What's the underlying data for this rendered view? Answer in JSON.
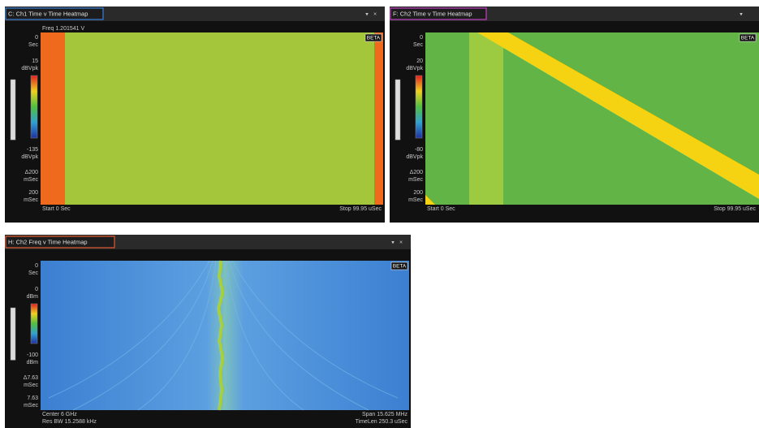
{
  "panels": [
    {
      "title": "C: Ch1 Time v Time Heatmap",
      "controls": [
        "▾",
        "×"
      ],
      "marker": "Freq 1.201541 V",
      "badge": "BETA",
      "y_top": [
        "0",
        "Sec"
      ],
      "scale_max": [
        "15",
        "dBVpk"
      ],
      "scale_min": [
        "-135",
        "dBVpk"
      ],
      "delta": [
        "Δ200",
        "mSec"
      ],
      "y_bottom": [
        "200",
        "mSec"
      ],
      "footer_left": [
        "Start 0 Sec"
      ],
      "footer_right": [
        "Stop 99.95 uSec"
      ]
    },
    {
      "title": "F: Ch2 Time v Time Heatmap",
      "controls": [
        "▾"
      ],
      "badge": "BETA",
      "y_top": [
        "0",
        "Sec"
      ],
      "scale_max": [
        "20",
        "dBVpk"
      ],
      "scale_min": [
        "-80",
        "dBVpk"
      ],
      "delta": [
        "Δ200",
        "mSec"
      ],
      "y_bottom": [
        "200",
        "mSec"
      ],
      "footer_left": [
        "Start 0 Sec"
      ],
      "footer_right": [
        "Stop 99.95 uSec"
      ]
    },
    {
      "title": "H: Ch2 Freq v Time Heatmap",
      "controls": [
        "▾",
        "×"
      ],
      "badge": "BETA",
      "y_top": [
        "0",
        "Sec"
      ],
      "scale_max": [
        "0",
        "dBm"
      ],
      "scale_min": [
        "-100",
        "dBm"
      ],
      "delta": [
        "Δ7.63",
        "mSec"
      ],
      "y_bottom": [
        "7.63",
        "mSec"
      ],
      "footer_left": [
        "Center 6 GHz",
        "Res BW 15.2588 kHz"
      ],
      "footer_right": [
        "Span 15.625 MHz",
        "TimeLen 250.3 uSec"
      ]
    }
  ]
}
